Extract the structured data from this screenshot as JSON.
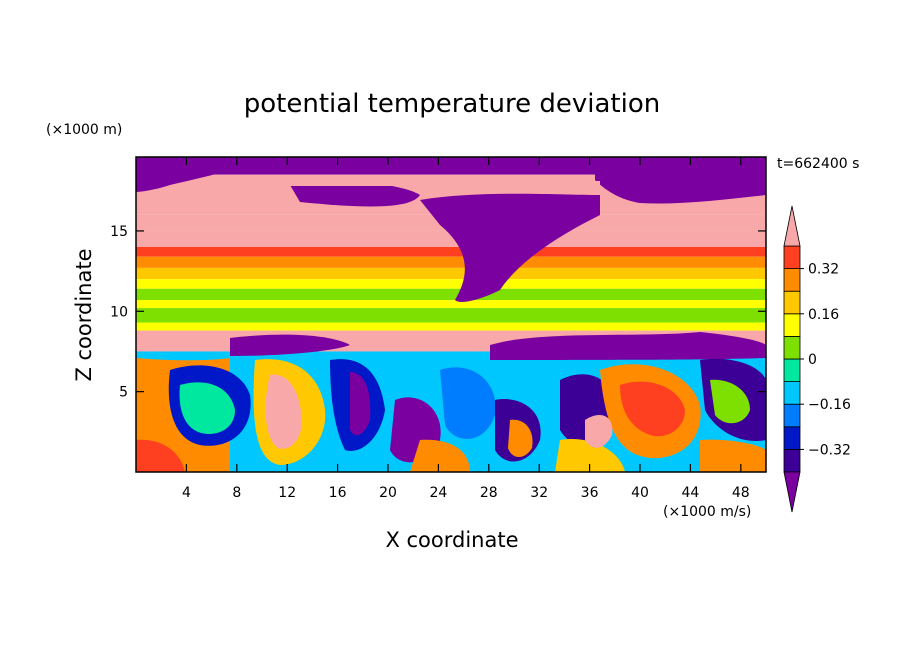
{
  "chart_data": {
    "type": "heatmap",
    "title": "potential temperature deviation",
    "xlabel": "X coordinate",
    "ylabel": "Z coordinate",
    "x_units": "(×1000 m/s)",
    "y_units": "(×1000 m)",
    "time_label": "t=662400 s",
    "xlim": [
      0,
      50
    ],
    "ylim": [
      0,
      19.6
    ],
    "x_ticks": [
      4,
      8,
      12,
      16,
      20,
      24,
      28,
      32,
      36,
      40,
      44,
      48
    ],
    "y_ticks": [
      5,
      10,
      15
    ],
    "colorbar": {
      "levels": [
        -0.4,
        -0.32,
        -0.24,
        -0.16,
        -0.08,
        0,
        0.08,
        0.16,
        0.24,
        0.32,
        0.4
      ],
      "labeled": [
        0.32,
        0.16,
        0,
        -0.16,
        -0.32
      ],
      "labels": [
        "0.32",
        "0.16",
        "0",
        "−0.16",
        "−0.32"
      ],
      "colors": [
        "#7a00a0",
        "#3c0096",
        "#0018c8",
        "#007cff",
        "#00c8ff",
        "#00e8a0",
        "#7ee000",
        "#ffff00",
        "#ffc800",
        "#ff8c00",
        "#ff4020",
        "#f8a8a8"
      ]
    },
    "bands": [
      {
        "z": [
          18.5,
          19.6
        ],
        "level": 0
      },
      {
        "z": [
          16.0,
          18.5
        ],
        "level": 11
      },
      {
        "z": [
          15.0,
          16.0
        ],
        "level": 11
      },
      {
        "z": [
          14.0,
          15.0
        ],
        "level": 11
      },
      {
        "z": [
          13.4,
          14.0
        ],
        "level": 10
      },
      {
        "z": [
          12.7,
          13.4
        ],
        "level": 9
      },
      {
        "z": [
          12.0,
          12.7
        ],
        "level": 8
      },
      {
        "z": [
          11.4,
          12.0
        ],
        "level": 7
      },
      {
        "z": [
          10.7,
          11.4
        ],
        "level": 6
      },
      {
        "z": [
          10.2,
          10.7
        ],
        "level": 7
      },
      {
        "z": [
          9.3,
          10.2
        ],
        "level": 6
      },
      {
        "z": [
          8.8,
          9.3
        ],
        "level": 7
      },
      {
        "z": [
          7.5,
          8.8
        ],
        "level": 11
      }
    ]
  }
}
